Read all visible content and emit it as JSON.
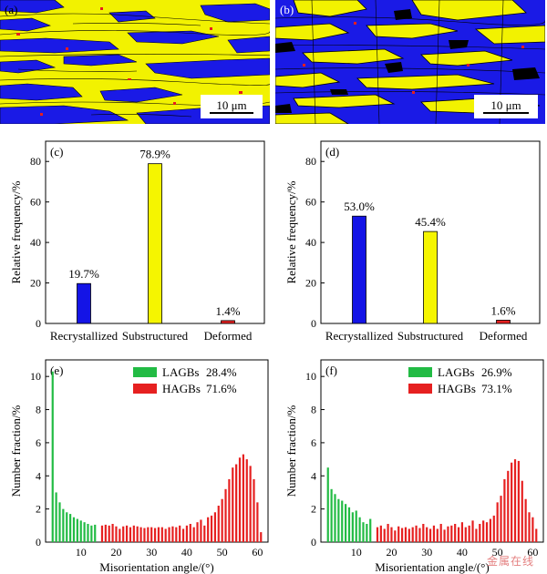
{
  "maps": [
    {
      "label": "(a)",
      "scale_bar": "10 μm",
      "colors": {
        "recrystallized": "#1a1ae6",
        "substructured": "#f2f200",
        "deformed": "#e61e1e",
        "boundary": "#000000"
      }
    },
    {
      "label": "(b)",
      "scale_bar": "10 μm",
      "colors": {
        "recrystallized": "#1a1ae6",
        "substructured": "#f2f200",
        "deformed": "#e61e1e",
        "boundary": "#000000"
      }
    }
  ],
  "chart_data": [
    {
      "type": "bar",
      "panel": "(c)",
      "categories": [
        "Recrystallized",
        "Substructured",
        "Deformed"
      ],
      "values": [
        19.7,
        78.9,
        1.4
      ],
      "value_labels": [
        "19.7%",
        "78.9%",
        "1.4%"
      ],
      "colors": [
        "#1414e6",
        "#f5f500",
        "#e62020"
      ],
      "ylabel": "Relative frequency/%",
      "ylim": [
        0,
        90
      ],
      "yticks": [
        0,
        20,
        40,
        60,
        80
      ]
    },
    {
      "type": "bar",
      "panel": "(d)",
      "categories": [
        "Recrystallized",
        "Substructured",
        "Deformed"
      ],
      "values": [
        53.0,
        45.4,
        1.6
      ],
      "value_labels": [
        "53.0%",
        "45.4%",
        "1.6%"
      ],
      "colors": [
        "#1414e6",
        "#f5f500",
        "#e62020"
      ],
      "ylabel": "Relative frequency/%",
      "ylim": [
        0,
        90
      ],
      "yticks": [
        0,
        20,
        40,
        60,
        80
      ]
    },
    {
      "type": "bar",
      "panel": "(e)",
      "xlabel": "Misorientation angle/(°)",
      "ylabel": "Number fraction/%",
      "xlim": [
        0,
        63
      ],
      "ylim": [
        0,
        11
      ],
      "xticks": [
        10,
        20,
        30,
        40,
        50,
        60
      ],
      "yticks": [
        0,
        2,
        4,
        6,
        8,
        10
      ],
      "legend": [
        {
          "name": "LAGBs",
          "value": "28.4%",
          "color": "#22bb44"
        },
        {
          "name": "HAGBs",
          "value": "71.6%",
          "color": "#e62020"
        }
      ],
      "series": [
        {
          "name": "LAGBs",
          "color": "#22bb44",
          "x": [
            2,
            3,
            4,
            5,
            6,
            7,
            8,
            9,
            10,
            11,
            12,
            13,
            14
          ],
          "values": [
            10.3,
            3.0,
            2.4,
            2.0,
            1.8,
            1.7,
            1.5,
            1.4,
            1.3,
            1.2,
            1.1,
            1.0,
            1.05
          ]
        },
        {
          "name": "HAGBs",
          "color": "#e62020",
          "x": [
            16,
            17,
            18,
            19,
            20,
            21,
            22,
            23,
            24,
            25,
            26,
            27,
            28,
            29,
            30,
            31,
            32,
            33,
            34,
            35,
            36,
            37,
            38,
            39,
            40,
            41,
            42,
            43,
            44,
            45,
            46,
            47,
            48,
            49,
            50,
            51,
            52,
            53,
            54,
            55,
            56,
            57,
            58,
            59,
            60,
            61
          ],
          "values": [
            1.0,
            1.05,
            1.0,
            1.1,
            0.95,
            0.8,
            0.95,
            1.0,
            0.9,
            1.0,
            0.95,
            0.9,
            0.85,
            0.9,
            0.9,
            0.85,
            0.9,
            0.9,
            0.8,
            0.9,
            0.95,
            0.9,
            1.0,
            0.8,
            1.0,
            1.1,
            0.9,
            1.2,
            1.35,
            1.0,
            1.5,
            1.6,
            1.8,
            2.2,
            2.6,
            3.2,
            3.8,
            4.5,
            4.7,
            5.1,
            5.3,
            5.0,
            4.6,
            3.8,
            2.4,
            0.6
          ]
        }
      ]
    },
    {
      "type": "bar",
      "panel": "(f)",
      "xlabel": "Misorientation angle/(°)",
      "ylabel": "Number fraction/%",
      "xlim": [
        0,
        63
      ],
      "ylim": [
        0,
        11
      ],
      "xticks": [
        10,
        20,
        30,
        40,
        50,
        60
      ],
      "yticks": [
        0,
        2,
        4,
        6,
        8,
        10
      ],
      "legend": [
        {
          "name": "LAGBs",
          "value": "26.9%",
          "color": "#22bb44"
        },
        {
          "name": "HAGBs",
          "value": "73.1%",
          "color": "#e62020"
        }
      ],
      "series": [
        {
          "name": "LAGBs",
          "color": "#22bb44",
          "x": [
            2,
            3,
            4,
            5,
            6,
            7,
            8,
            9,
            10,
            11,
            12,
            13,
            14
          ],
          "values": [
            4.5,
            3.2,
            2.9,
            2.6,
            2.5,
            2.3,
            2.1,
            1.8,
            1.9,
            1.5,
            1.2,
            1.1,
            1.4
          ]
        },
        {
          "name": "HAGBs",
          "color": "#e62020",
          "x": [
            16,
            17,
            18,
            19,
            20,
            21,
            22,
            23,
            24,
            25,
            26,
            27,
            28,
            29,
            30,
            31,
            32,
            33,
            34,
            35,
            36,
            37,
            38,
            39,
            40,
            41,
            42,
            43,
            44,
            45,
            46,
            47,
            48,
            49,
            50,
            51,
            52,
            53,
            54,
            55,
            56,
            57,
            58,
            59,
            60,
            61
          ],
          "values": [
            0.9,
            1.0,
            0.8,
            1.1,
            0.9,
            0.7,
            0.95,
            0.85,
            0.9,
            0.8,
            0.9,
            1.0,
            0.85,
            1.1,
            0.9,
            0.8,
            1.0,
            0.8,
            1.1,
            0.75,
            0.95,
            1.0,
            1.1,
            0.9,
            1.2,
            0.9,
            1.0,
            1.3,
            0.8,
            1.1,
            1.3,
            1.2,
            1.4,
            1.6,
            2.4,
            2.8,
            3.8,
            4.3,
            4.8,
            5.0,
            4.9,
            3.7,
            2.6,
            1.8,
            1.5,
            0.8
          ]
        }
      ]
    }
  ],
  "watermark": "金属在线"
}
